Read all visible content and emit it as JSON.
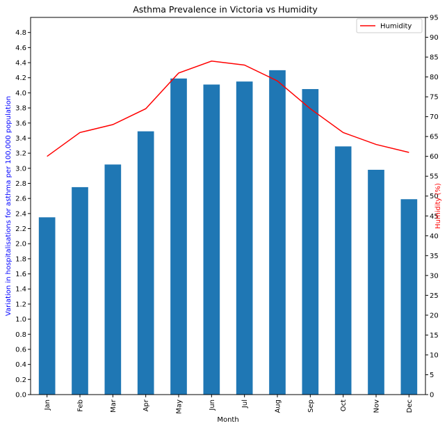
{
  "chart_data": {
    "type": "bar",
    "title": "Asthma Prevalence in Victoria vs Humidity",
    "xlabel": "Month",
    "ylabel": "Variation in hospitalisations for asthma per 100,000 population",
    "y2label": "Humidity (%)",
    "categories": [
      "Jan",
      "Feb",
      "Mar",
      "Apr",
      "May",
      "Jun",
      "Jul",
      "Aug",
      "Sep",
      "Oct",
      "Nov",
      "Dec"
    ],
    "series": [
      {
        "type": "bar",
        "axis": "left",
        "color": "#1f77b4",
        "values": [
          2.35,
          2.75,
          3.05,
          3.49,
          4.19,
          4.11,
          4.15,
          4.3,
          4.05,
          3.29,
          2.98,
          2.59
        ]
      },
      {
        "type": "line",
        "axis": "right",
        "name": "Humidity",
        "color": "#ff0000",
        "values": [
          60,
          66,
          68,
          72,
          81,
          84,
          83,
          79,
          72,
          66,
          63,
          61
        ]
      }
    ],
    "ylim": [
      0,
      5.0
    ],
    "yticks": [
      "0.0",
      "0.2",
      "0.4",
      "0.6",
      "0.8",
      "1.0",
      "1.2",
      "1.4",
      "1.6",
      "1.8",
      "2.0",
      "2.2",
      "2.4",
      "2.6",
      "2.8",
      "3.0",
      "3.2",
      "3.4",
      "3.6",
      "3.8",
      "4.0",
      "4.2",
      "4.4",
      "4.6",
      "4.8"
    ],
    "y2lim": [
      0,
      95
    ],
    "y2ticks": [
      "0",
      "5",
      "10",
      "15",
      "20",
      "25",
      "30",
      "35",
      "40",
      "45",
      "50",
      "55",
      "60",
      "65",
      "70",
      "75",
      "80",
      "85",
      "90",
      "95"
    ],
    "grid": false,
    "legend": {
      "placement": "top-right",
      "entries": [
        "Humidity"
      ]
    },
    "ylabel_color": "#0000ff",
    "y2label_color": "#ff0000"
  }
}
